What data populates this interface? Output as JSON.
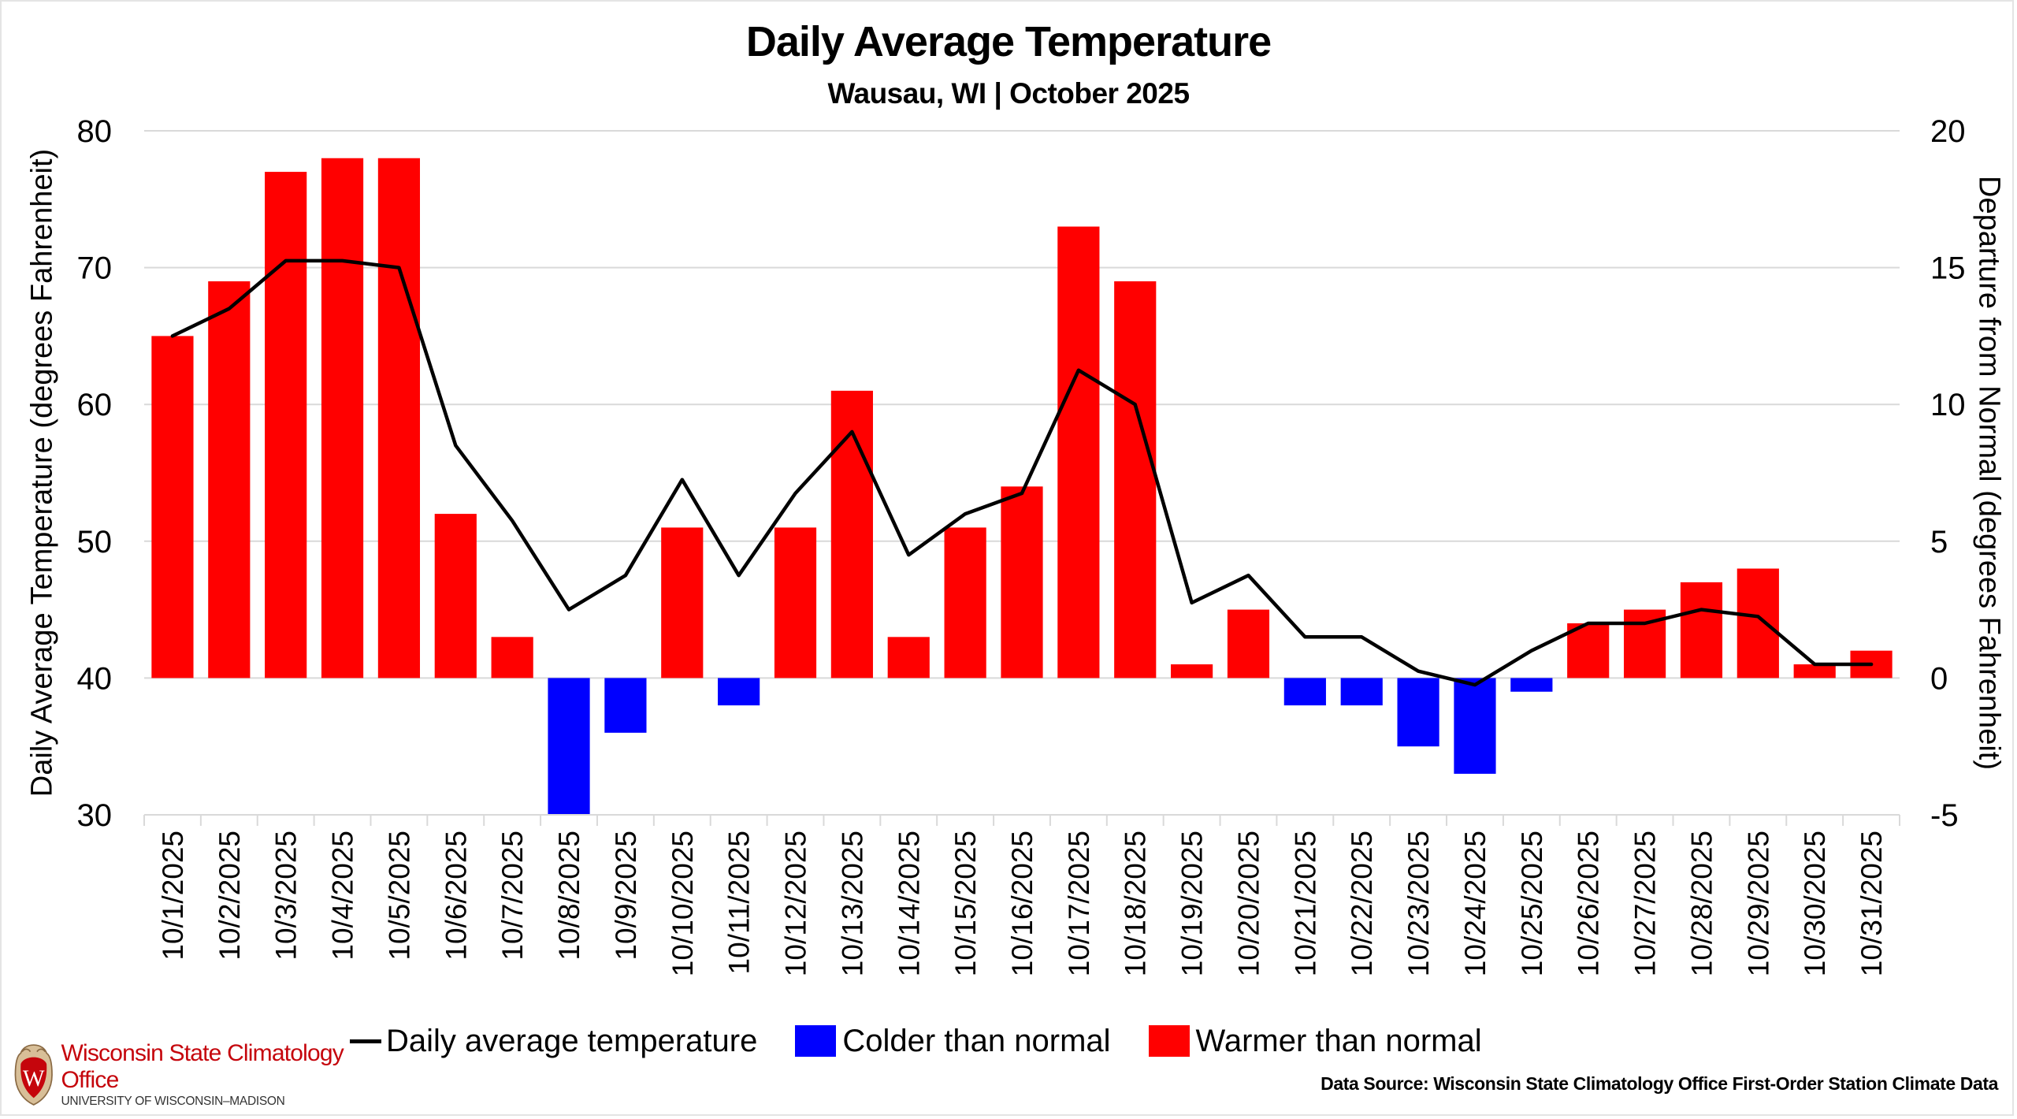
{
  "chart_data": {
    "type": "bar+line",
    "title": "Daily Average Temperature",
    "subtitle": "Wausau, WI | October 2025",
    "ylabel": "Daily Average Temperature (degrees Fahrenheit)",
    "ylabel_right": "Departure from Normal (degrees Fahrenheit)",
    "ylim": [
      30,
      80
    ],
    "ylim_right": [
      -5,
      20
    ],
    "yticks": [
      30,
      40,
      50,
      60,
      70,
      80
    ],
    "yticks_right": [
      -5,
      0,
      5,
      10,
      15,
      20
    ],
    "grid": true,
    "legend_position": "bottom",
    "categories": [
      "10/1/2025",
      "10/2/2025",
      "10/3/2025",
      "10/4/2025",
      "10/5/2025",
      "10/6/2025",
      "10/7/2025",
      "10/8/2025",
      "10/9/2025",
      "10/10/2025",
      "10/11/2025",
      "10/12/2025",
      "10/13/2025",
      "10/14/2025",
      "10/15/2025",
      "10/16/2025",
      "10/17/2025",
      "10/18/2025",
      "10/19/2025",
      "10/20/2025",
      "10/21/2025",
      "10/22/2025",
      "10/23/2025",
      "10/24/2025",
      "10/25/2025",
      "10/26/2025",
      "10/27/2025",
      "10/28/2025",
      "10/29/2025",
      "10/30/2025",
      "10/31/2025"
    ],
    "series": [
      {
        "name": "Daily average temperature",
        "type": "line",
        "axis": "left",
        "color": "#000000",
        "values": [
          65.0,
          67.0,
          70.5,
          70.5,
          70.0,
          57.0,
          51.5,
          45.0,
          47.5,
          54.5,
          47.5,
          53.5,
          58.0,
          49.0,
          52.0,
          53.5,
          62.5,
          60.0,
          45.5,
          47.5,
          43.0,
          43.0,
          40.5,
          39.5,
          42.0,
          44.0,
          44.0,
          45.0,
          44.5,
          41.0,
          41.0
        ]
      },
      {
        "name": "Departure from normal",
        "type": "bar",
        "axis": "right",
        "values": [
          12.5,
          14.5,
          18.5,
          19.0,
          19.0,
          6.0,
          1.5,
          -5.0,
          -2.0,
          5.5,
          -1.0,
          5.5,
          10.5,
          1.5,
          5.5,
          7.0,
          16.5,
          14.5,
          0.5,
          2.5,
          -1.0,
          -1.0,
          -2.5,
          -3.5,
          -0.5,
          2.0,
          2.5,
          3.5,
          4.0,
          0.5,
          1.0
        ]
      }
    ],
    "legend": [
      {
        "label": "Daily average temperature",
        "kind": "line",
        "color": "#000000"
      },
      {
        "label": "Colder than normal",
        "kind": "box",
        "color": "#0000ff"
      },
      {
        "label": "Warmer than normal",
        "kind": "box",
        "color": "#ff0000"
      }
    ],
    "colors": {
      "warmer": "#ff0000",
      "colder": "#0000ff",
      "grid": "#d9d9d9",
      "line": "#000000"
    }
  },
  "footer": {
    "logo_org": "Wisconsin State Climatology Office",
    "logo_university": "UNIVERSITY OF WISCONSIN–MADISON",
    "logo_letter": "W",
    "data_source": "Data Source: Wisconsin State Climatology Office First-Order Station Climate Data"
  }
}
